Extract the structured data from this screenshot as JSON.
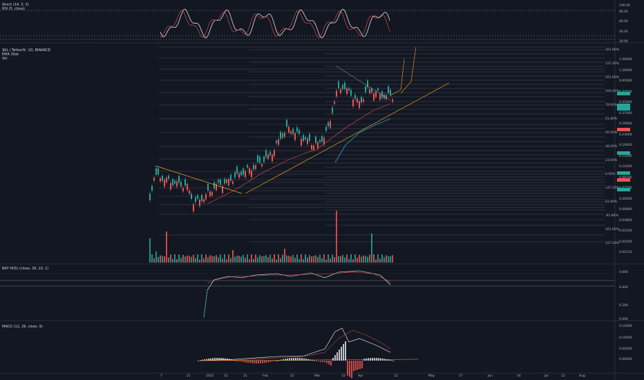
{
  "panes": {
    "stoch": {
      "label": "Stoch (14, 3, 3)",
      "label2": "RSI (5, close)",
      "scale": [
        "100.00",
        "80.00",
        "60.00",
        "40.00",
        "20.00"
      ]
    },
    "main": {
      "symbol": "SKL / Tetherl¥, 1D, BINANCE",
      "ema_label": "EMA 30at",
      "vol_label": "Vol",
      "scale": [
        "1.58000",
        "1.20000",
        "0.95000",
        "0.60000",
        "0.45000",
        "0.37000",
        "0.29000",
        "0.23000",
        "0.19000",
        "0.15000",
        "0.12000",
        "0.09700",
        "0.07700",
        "0.06000",
        "0.04800",
        "0.03800",
        "0.03100",
        "0.02500",
        "0.02110"
      ],
      "fib_labels": [
        "161.80%",
        "127.20%",
        "161.80%",
        "100.00%",
        "78.60%",
        "61.80%",
        "50.00%",
        "38.20%",
        "23.60%",
        "0.00%",
        "127.20%",
        "61.80%",
        "-61.80%",
        "161.80%",
        "127.20%"
      ]
    },
    "bat": {
      "label": "BAT HI(5) (close, 30, 10, 1)",
      "scale": [
        "0.600",
        "0.400",
        "0.200",
        "0.000"
      ]
    },
    "macd": {
      "label": "MACD (12, 26, close, 9)",
      "scale": [
        "0.15000",
        "0.10000",
        "0.05000",
        "0.00000"
      ]
    }
  },
  "time_axis": [
    "7",
    "21",
    "2021",
    "11",
    "21",
    "Feb",
    "15",
    "Mar",
    "15",
    "Apr",
    "12",
    "May",
    "17",
    "Jun",
    "14",
    "Jul",
    "12",
    "Aug"
  ],
  "colors": {
    "bg": "#131722",
    "up": "#26a69a",
    "down": "#ef5350",
    "k_line": "#ffffff",
    "d_line": "#ef5350",
    "trend": "#f5a623",
    "ema": "#1e9fb0"
  }
}
